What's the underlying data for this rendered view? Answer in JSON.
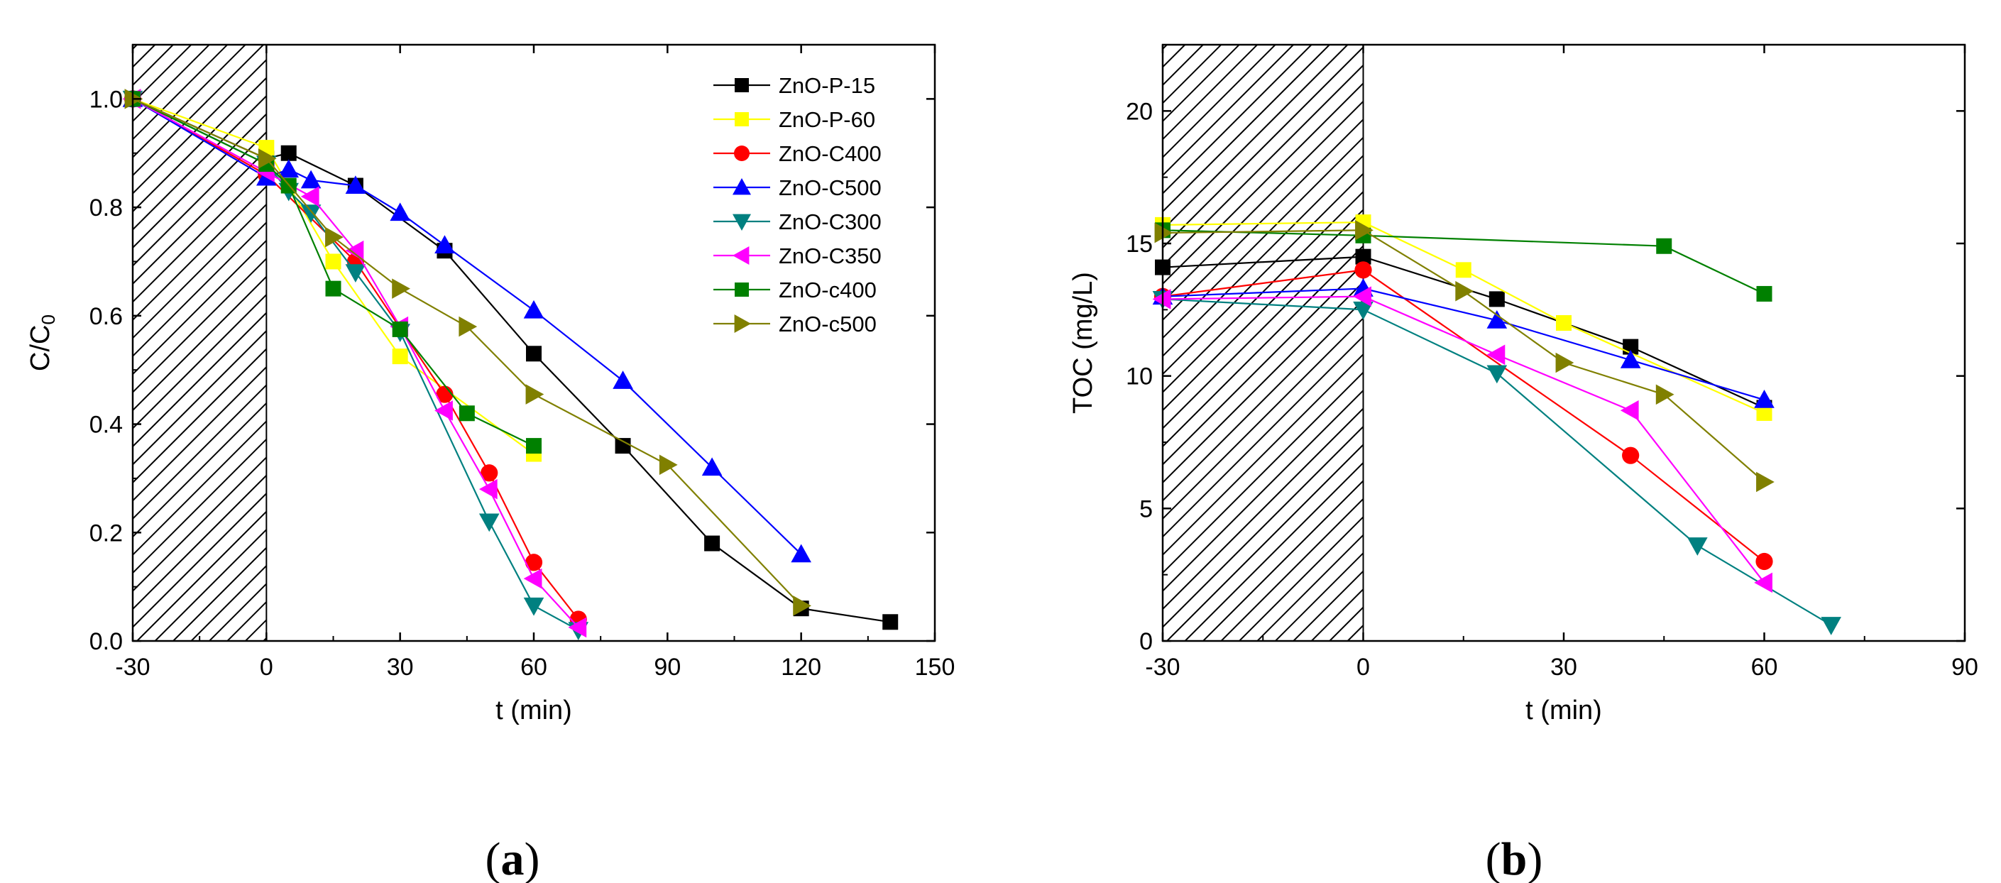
{
  "chart_data": [
    {
      "panel": "(a)",
      "panel_letter": "a",
      "type": "line",
      "xlabel": "t (min)",
      "ylabel": "C/C",
      "ylabel_sub": "0",
      "xlim": [
        -30,
        150
      ],
      "ylim": [
        0,
        1.1
      ],
      "xticks": [
        -30,
        0,
        30,
        60,
        90,
        120,
        150
      ],
      "xtick_labels": [
        "-30",
        "0",
        "30",
        "60",
        "90",
        "120",
        "150"
      ],
      "yticks": [
        0.0,
        0.2,
        0.4,
        0.6,
        0.8,
        1.0
      ],
      "ytick_labels": [
        "0.0",
        "0.2",
        "0.4",
        "0.6",
        "0.8",
        "1.0"
      ],
      "dark_region": [
        -30,
        0
      ],
      "legend_position": "top-right",
      "series": [
        {
          "name": "ZnO-P-15",
          "color": "#000000",
          "marker": "square",
          "x": [
            -30,
            0,
            5,
            20,
            40,
            60,
            80,
            100,
            120,
            140
          ],
          "y": [
            1.0,
            0.89,
            0.9,
            0.84,
            0.72,
            0.53,
            0.36,
            0.18,
            0.06,
            0.035
          ]
        },
        {
          "name": "ZnO-P-60",
          "color": "#ffff00",
          "marker": "square",
          "x": [
            -30,
            0,
            15,
            30,
            60
          ],
          "y": [
            1.0,
            0.91,
            0.7,
            0.525,
            0.345
          ]
        },
        {
          "name": "ZnO-C400",
          "color": "#ff0000",
          "marker": "circle",
          "x": [
            -30,
            0,
            20,
            40,
            50,
            60,
            70
          ],
          "y": [
            1.0,
            0.86,
            0.7,
            0.455,
            0.31,
            0.145,
            0.04
          ]
        },
        {
          "name": "ZnO-C500",
          "color": "#0000ff",
          "marker": "triangle-up",
          "x": [
            -30,
            0,
            5,
            10,
            20,
            30,
            40,
            60,
            80,
            100,
            120
          ],
          "y": [
            1.0,
            0.855,
            0.87,
            0.85,
            0.84,
            0.79,
            0.73,
            0.61,
            0.48,
            0.32,
            0.16
          ]
        },
        {
          "name": "ZnO-C300",
          "color": "#008080",
          "marker": "triangle-down",
          "x": [
            -30,
            0,
            5,
            10,
            20,
            30,
            50,
            60,
            70
          ],
          "y": [
            1.0,
            0.88,
            0.83,
            0.79,
            0.68,
            0.57,
            0.22,
            0.065,
            0.02
          ]
        },
        {
          "name": "ZnO-C350",
          "color": "#ff00ff",
          "marker": "triangle-left",
          "x": [
            -30,
            0,
            10,
            20,
            30,
            40,
            50,
            60,
            70
          ],
          "y": [
            1.0,
            0.865,
            0.82,
            0.72,
            0.58,
            0.425,
            0.28,
            0.115,
            0.025
          ]
        },
        {
          "name": "ZnO-c400",
          "color": "#008000",
          "marker": "square",
          "x": [
            -30,
            0,
            5,
            15,
            30,
            45,
            60
          ],
          "y": [
            1.0,
            0.88,
            0.84,
            0.65,
            0.575,
            0.42,
            0.36
          ]
        },
        {
          "name": "ZnO-c500",
          "color": "#808000",
          "marker": "triangle-right",
          "x": [
            -30,
            0,
            15,
            30,
            45,
            60,
            90,
            120
          ],
          "y": [
            1.0,
            0.89,
            0.745,
            0.65,
            0.58,
            0.455,
            0.325,
            0.065
          ]
        }
      ]
    },
    {
      "panel": "(b)",
      "panel_letter": "b",
      "type": "line",
      "xlabel": "t (min)",
      "ylabel": "TOC (mg/L)",
      "xlim": [
        -30,
        90
      ],
      "ylim": [
        0,
        22.5
      ],
      "xticks": [
        -30,
        0,
        30,
        60,
        90
      ],
      "xtick_labels": [
        "-30",
        "0",
        "30",
        "60",
        "90"
      ],
      "yticks": [
        0,
        5,
        10,
        15,
        20
      ],
      "ytick_labels": [
        "0",
        "5",
        "10",
        "15",
        "20"
      ],
      "dark_region": [
        -30,
        0
      ],
      "series": [
        {
          "name": "ZnO-P-15",
          "color": "#000000",
          "marker": "square",
          "x": [
            -30,
            0,
            20,
            40,
            60
          ],
          "y": [
            14.1,
            14.5,
            12.9,
            11.1,
            8.8
          ]
        },
        {
          "name": "ZnO-P-60",
          "color": "#ffff00",
          "marker": "square",
          "x": [
            -30,
            0,
            15,
            30,
            60
          ],
          "y": [
            15.7,
            15.8,
            14.0,
            12.0,
            8.6
          ]
        },
        {
          "name": "ZnO-C400",
          "color": "#ff0000",
          "marker": "circle",
          "x": [
            -30,
            0,
            40,
            60
          ],
          "y": [
            13.0,
            14.0,
            7.0,
            3.0
          ]
        },
        {
          "name": "ZnO-C500",
          "color": "#0000ff",
          "marker": "triangle-up",
          "x": [
            -30,
            0,
            20,
            40,
            60
          ],
          "y": [
            13.0,
            13.3,
            12.1,
            10.6,
            9.1
          ]
        },
        {
          "name": "ZnO-C300",
          "color": "#008080",
          "marker": "triangle-down",
          "x": [
            -30,
            0,
            20,
            50,
            70
          ],
          "y": [
            12.9,
            12.5,
            10.1,
            3.6,
            0.6
          ]
        },
        {
          "name": "ZnO-C350",
          "color": "#ff00ff",
          "marker": "triangle-left",
          "x": [
            -30,
            0,
            20,
            40,
            60
          ],
          "y": [
            12.9,
            13.0,
            10.8,
            8.7,
            2.2
          ]
        },
        {
          "name": "ZnO-c400",
          "color": "#008000",
          "marker": "square",
          "x": [
            -30,
            0,
            45,
            60
          ],
          "y": [
            15.5,
            15.3,
            14.9,
            13.1
          ]
        },
        {
          "name": "ZnO-c500",
          "color": "#808000",
          "marker": "triangle-right",
          "x": [
            -30,
            0,
            15,
            30,
            45,
            60
          ],
          "y": [
            15.4,
            15.5,
            13.2,
            10.5,
            9.3,
            6.0
          ]
        }
      ]
    }
  ]
}
